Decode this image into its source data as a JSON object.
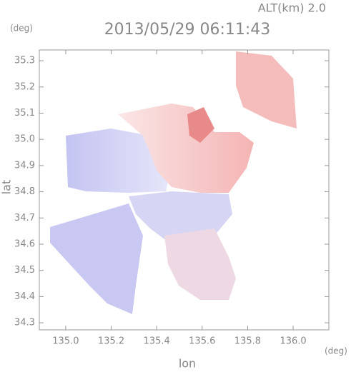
{
  "chart_data": {
    "type": "map",
    "title": "2013/05/29 06:11:43",
    "annotation": "ALT(km) 2.0",
    "x_label": "lon",
    "y_label": "lat",
    "x_unit": "(deg)",
    "y_unit": "(deg)",
    "xlim": [
      134.884,
      136.157
    ],
    "ylim": [
      34.273,
      35.341
    ],
    "xticks": [
      {
        "value": 135,
        "label": "135.0"
      },
      135.2,
      135.4,
      135.6,
      135.8,
      {
        "value": 136,
        "label": "136.0"
      }
    ],
    "yticks": [
      34.3,
      34.4,
      34.5,
      34.6,
      34.7,
      34.8,
      34.9,
      {
        "value": 35,
        "label": "35.0"
      },
      35.1,
      35.2,
      35.3
    ]
  }
}
